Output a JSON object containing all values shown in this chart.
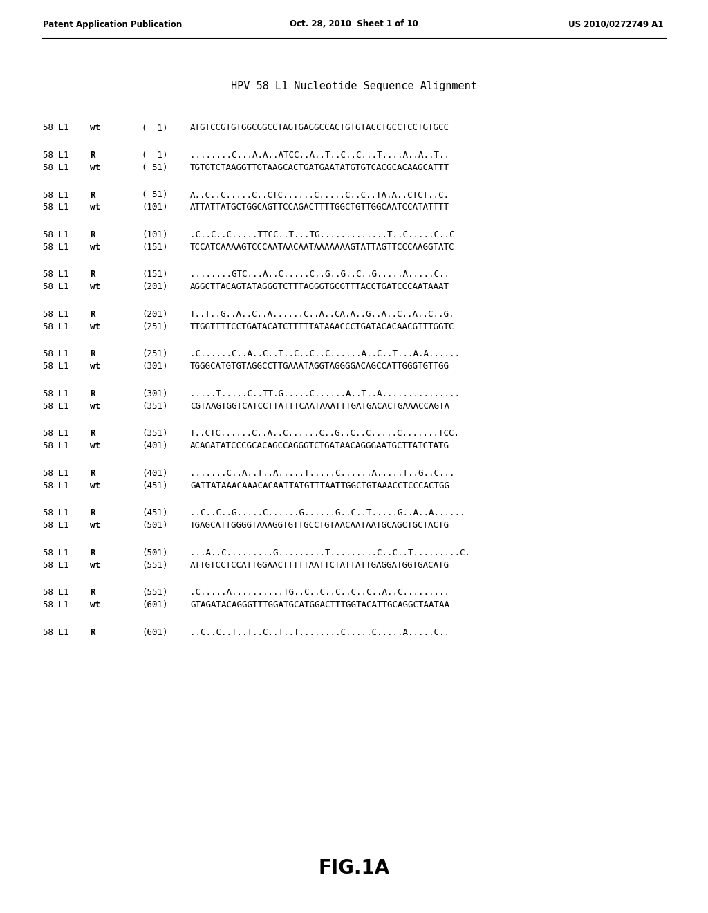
{
  "background_color": "#ffffff",
  "header_left": "Patent Application Publication",
  "header_center": "Oct. 28, 2010  Sheet 1 of 10",
  "header_right": "US 2010/0272749 A1",
  "title": "HPV 58 L1 Nucleotide Sequence Alignment",
  "figure_label": "FIG.1A",
  "rows": [
    [
      "58 L1 wt",
      "(  1)",
      "ATGTCCGTGTGGCGGCCTAGTGAGGCCACTGTGTACCTGCCTCCTGTGCC"
    ],
    [
      "58 L1 R",
      "(  1)",
      "........C...A.A..ATCC..A..T..C..C...T....A..A..T.."
    ],
    [
      "58 L1 wt",
      "( 51)",
      "TGTGTCTAAGGTTGTAAGCACTGATGAATATGTGTCACGCACAAGCATTT"
    ],
    [
      "58 L1 R",
      "( 51)",
      "A..C..C.....C..CTC......C.....C..C..TA.A..CTCT..C."
    ],
    [
      "58 L1 wt",
      "(101)",
      "ATTATTATGCTGGCAGTTCCAGACTTTTGGCTGTTGGCAATCCATATTTT"
    ],
    [
      "58 L1 R",
      "(101)",
      ".C..C..C.....TTCC..T...TG.............T..C.....C..C"
    ],
    [
      "58 L1 wt",
      "(151)",
      "TCCATCAAAAGTCCCAATAACAATAAAAAAAGTATTAGTTCCCAAGGTATC"
    ],
    [
      "58 L1 R",
      "(151)",
      "........GTC...A..C.....C..G..G..C..G.....A.....C.."
    ],
    [
      "58 L1 wt",
      "(201)",
      "AGGCTTACAGTATAGGGTCTTTAGGGTGCGTTTACCTGATCCCAATAAAT"
    ],
    [
      "58 L1 R",
      "(201)",
      "T..T..G..A..C..A......C..A..CA.A..G..A..C..A..C..G."
    ],
    [
      "58 L1 wt",
      "(251)",
      "TTGGTTTTCCTGATACATCTTTTTATAAACCCTGATACACAACGTTTGGTC"
    ],
    [
      "58 L1 R",
      "(251)",
      ".C......C..A..C..T..C..C..C......A..C..T...A.A......"
    ],
    [
      "58 L1 wt",
      "(301)",
      "TGGGCATGTGTAGGCCTTGAAATAGGTAGGGGACAGCCATTGGGTGTTGG"
    ],
    [
      "58 L1 R",
      "(301)",
      ".....T.....C..TT.G.....C......A..T..A..............."
    ],
    [
      "58 L1 wt",
      "(351)",
      "CGTAAGTGGTCATCCTTATTTCAATAAATTTGATGACACTGAAACCAGTA"
    ],
    [
      "58 L1 R",
      "(351)",
      "T..CTC......C..A..C......C..G..C..C.....C.......TCC."
    ],
    [
      "58 L1 wt",
      "(401)",
      "ACAGATATCCCGCACAGCCAGGGTCTGATAACAGGGAATGCTTATCTATG"
    ],
    [
      "58 L1 R",
      "(401)",
      ".......C..A..T..A.....T.....C......A.....T..G..C..."
    ],
    [
      "58 L1 wt",
      "(451)",
      "GATTATAAACAAACACAATTATGTTTAATTGGCTGTAAACCTCCCACTGG"
    ],
    [
      "58 L1 R",
      "(451)",
      "..C..C..G.....C......G......G..C..T.....G..A..A......"
    ],
    [
      "58 L1 wt",
      "(501)",
      "TGAGCATTGGGGTAAAGGTGTTGCCTGTAACAATAATGCAGCTGCTACTG"
    ],
    [
      "58 L1 R",
      "(501)",
      "...A..C.........G.........T.........C..C..T.........C."
    ],
    [
      "58 L1 wt",
      "(551)",
      "ATTGTCCTCCATTGGAACTTTTTAATTCTATTATTGAGGATGGTGACATG"
    ],
    [
      "58 L1 R",
      "(551)",
      ".C.....A..........TG..C..C..C..C..C..A..C........."
    ],
    [
      "58 L1 wt",
      "(601)",
      "GTAGATACAGGGTTTGGATGCATGGACTTTGGTACATTGCAGGCTAATAA"
    ],
    [
      "58 L1 R",
      "(601)",
      "..C..C..T..T..C..T..T........C.....C.....A.....C.."
    ]
  ]
}
